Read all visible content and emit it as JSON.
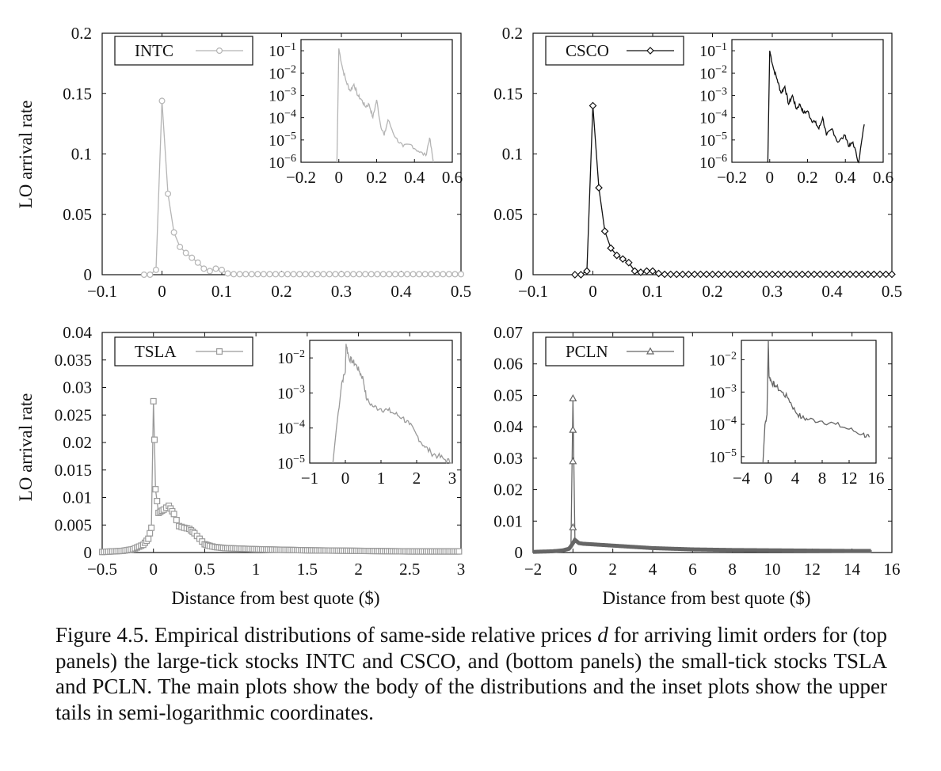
{
  "figure": {
    "xlabel": "Distance from best quote ($)",
    "ylabel": "LO arrival rate"
  },
  "caption": {
    "part1": "Figure 4.5. Empirical distributions of same-side relative prices ",
    "symbol": "d",
    "part2": " for arriving limit orders for (top panels) the large-tick stocks INTC and CSCO, and (bottom panels) the small-tick stocks TSLA and PCLN. The main plots show the body of the distributions and the inset plots show the upper tails in semi-logarithmic coordinates."
  },
  "colors": {
    "INTC": "#b5b5b5",
    "CSCO": "#111111",
    "TSLA": "#9a9a9a",
    "PCLN": "#666666",
    "axis": "#111111"
  },
  "chart_data": [
    {
      "id": "INTC",
      "type": "line",
      "legend": "INTC",
      "marker": "circle",
      "xlabel": "",
      "ylabel": "LO arrival rate",
      "xlim": [
        -0.1,
        0.5
      ],
      "ylim": [
        0,
        0.2
      ],
      "xticks": [
        -0.1,
        0,
        0.1,
        0.2,
        0.3,
        0.4,
        0.5
      ],
      "xtick_labels": [
        "−0.1",
        "0",
        "0.1",
        "0.2",
        "0.3",
        "0.4",
        "0.5"
      ],
      "yticks": [
        0,
        0.05,
        0.1,
        0.15,
        0.2
      ],
      "ytick_labels": [
        "0",
        "0.05",
        "0.1",
        "0.15",
        "0.2"
      ],
      "x": [
        -0.03,
        -0.02,
        -0.01,
        0,
        0.01,
        0.02,
        0.03,
        0.04,
        0.05,
        0.06,
        0.07,
        0.08,
        0.09,
        0.1,
        0.11
      ],
      "y": [
        0,
        0,
        0.004,
        0.144,
        0.067,
        0.035,
        0.023,
        0.018,
        0.014,
        0.01,
        0.005,
        0.003,
        0.005,
        0.004,
        0.001
      ],
      "tail_value": 0.0004,
      "inset": {
        "xlim": [
          -0.2,
          0.6
        ],
        "ylim_exp": [
          -6,
          -0.5
        ],
        "xticks": [
          -0.2,
          0,
          0.2,
          0.4,
          0.6
        ],
        "xtick_labels": [
          "−0.2",
          "0",
          "0.2",
          "0.4",
          "0.6"
        ],
        "yticks_exp": [
          -6,
          -5,
          -4,
          -3,
          -2,
          -1
        ],
        "ytick_labels": [
          "−6",
          "−5",
          "−4",
          "−3",
          "−2",
          "−1"
        ],
        "ytick_base": "10",
        "x": [
          -0.01,
          0,
          0.02,
          0.04,
          0.06,
          0.08,
          0.1,
          0.12,
          0.14,
          0.16,
          0.18,
          0.2,
          0.22,
          0.24,
          0.26,
          0.3,
          0.34,
          0.38,
          0.42,
          0.46,
          0.48,
          0.5
        ],
        "y_exp": [
          -6,
          -0.9,
          -1.8,
          -2.4,
          -2.8,
          -2.5,
          -3.0,
          -3.2,
          -3.5,
          -3.4,
          -4.0,
          -3.2,
          -4.3,
          -4.8,
          -4.1,
          -4.9,
          -5.3,
          -5.2,
          -5.5,
          -5.7,
          -4.9,
          -6
        ]
      }
    },
    {
      "id": "CSCO",
      "type": "line",
      "legend": "CSCO",
      "marker": "diamond",
      "xlabel": "",
      "ylabel": "",
      "xlim": [
        -0.1,
        0.5
      ],
      "ylim": [
        0,
        0.2
      ],
      "xticks": [
        -0.1,
        0,
        0.1,
        0.2,
        0.3,
        0.4,
        0.5
      ],
      "xtick_labels": [
        "−0.1",
        "0",
        "0.1",
        "0.2",
        "0.3",
        "0.4",
        "0.5"
      ],
      "yticks": [
        0,
        0.05,
        0.1,
        0.15,
        0.2
      ],
      "ytick_labels": [
        "0",
        "0.05",
        "0.1",
        "0.15",
        "0.2"
      ],
      "x": [
        -0.03,
        -0.02,
        -0.01,
        0,
        0.01,
        0.02,
        0.03,
        0.04,
        0.05,
        0.06,
        0.07,
        0.08,
        0.09,
        0.1,
        0.11
      ],
      "y": [
        0,
        0,
        0.003,
        0.14,
        0.072,
        0.036,
        0.022,
        0.016,
        0.013,
        0.01,
        0.003,
        0.002,
        0.003,
        0.003,
        0.001
      ],
      "tail_value": 0.0003,
      "inset": {
        "xlim": [
          -0.2,
          0.6
        ],
        "ylim_exp": [
          -6,
          -0.5
        ],
        "xticks": [
          -0.2,
          0,
          0.2,
          0.4,
          0.6
        ],
        "xtick_labels": [
          "−0.2",
          "0",
          "0.2",
          "0.4",
          "0.6"
        ],
        "yticks_exp": [
          -6,
          -5,
          -4,
          -3,
          -2,
          -1
        ],
        "ytick_labels": [
          "−6",
          "−5",
          "−4",
          "−3",
          "−2",
          "−1"
        ],
        "ytick_base": "10",
        "x": [
          -0.01,
          0,
          0.02,
          0.04,
          0.06,
          0.08,
          0.1,
          0.12,
          0.14,
          0.16,
          0.18,
          0.2,
          0.22,
          0.24,
          0.26,
          0.28,
          0.3,
          0.33,
          0.36,
          0.4,
          0.42,
          0.44,
          0.47,
          0.5
        ],
        "y_exp": [
          -6,
          -1.0,
          -1.8,
          -2.3,
          -2.9,
          -2.6,
          -3.4,
          -3.0,
          -3.6,
          -3.4,
          -3.8,
          -3.7,
          -4.1,
          -4.2,
          -4.5,
          -4.0,
          -4.8,
          -4.5,
          -5.1,
          -4.8,
          -5.3,
          -5.1,
          -6,
          -4.3
        ]
      }
    },
    {
      "id": "TSLA",
      "type": "line",
      "legend": "TSLA",
      "marker": "square",
      "xlabel": "Distance from best quote ($)",
      "ylabel": "LO arrival rate",
      "xlim": [
        -0.5,
        3
      ],
      "ylim": [
        0,
        0.04
      ],
      "xticks": [
        -0.5,
        0,
        0.5,
        1,
        1.5,
        2,
        2.5,
        3
      ],
      "xtick_labels": [
        "−0.5",
        "0",
        "0.5",
        "1",
        "1.5",
        "2",
        "2.5",
        "3"
      ],
      "yticks": [
        0,
        0.005,
        0.01,
        0.015,
        0.02,
        0.025,
        0.03,
        0.035,
        0.04
      ],
      "ytick_labels": [
        "0",
        "0.005",
        "0.01",
        "0.015",
        "0.02",
        "0.025",
        "0.03",
        "0.035",
        "0.04"
      ],
      "x": [
        -0.5,
        -0.3,
        -0.2,
        -0.1,
        -0.05,
        -0.02,
        0,
        0.01,
        0.02,
        0.05,
        0.1,
        0.15,
        0.2,
        0.25,
        0.3,
        0.35,
        0.4,
        0.45,
        0.5,
        0.55,
        0.6,
        0.7,
        1,
        1.5,
        2,
        2.5,
        3
      ],
      "y": [
        0.0001,
        0.0003,
        0.0006,
        0.0014,
        0.0025,
        0.0045,
        0.0275,
        0.0205,
        0.0115,
        0.0072,
        0.0078,
        0.0085,
        0.007,
        0.0048,
        0.0045,
        0.0043,
        0.0035,
        0.0025,
        0.0015,
        0.0012,
        0.001,
        0.0008,
        0.0006,
        0.0004,
        0.0003,
        0.0002,
        0.0002
      ],
      "inset": {
        "xlim": [
          -1,
          3
        ],
        "ylim_exp": [
          -5,
          -1.5
        ],
        "xticks": [
          -1,
          0,
          1,
          2,
          3
        ],
        "xtick_labels": [
          "−1",
          "0",
          "1",
          "2",
          "3"
        ],
        "yticks_exp": [
          -5,
          -4,
          -3,
          -2
        ],
        "ytick_labels": [
          "−5",
          "−4",
          "−3",
          "−2"
        ],
        "ytick_base": "10",
        "x": [
          -0.35,
          -0.25,
          -0.1,
          0,
          0.02,
          0.1,
          0.2,
          0.3,
          0.4,
          0.5,
          0.6,
          0.8,
          1,
          1.2,
          1.4,
          1.6,
          1.8,
          2,
          2.2,
          2.4,
          2.6,
          2.8,
          3
        ],
        "y_exp": [
          -5,
          -4.0,
          -2.7,
          -2.4,
          -1.6,
          -2.0,
          -2.1,
          -2.2,
          -2.4,
          -2.6,
          -3.2,
          -3.4,
          -3.45,
          -3.5,
          -3.6,
          -3.7,
          -3.9,
          -4.2,
          -4.5,
          -4.7,
          -4.8,
          -4.9,
          -5.0
        ]
      }
    },
    {
      "id": "PCLN",
      "type": "line",
      "legend": "PCLN",
      "marker": "triangle",
      "xlabel": "Distance from best quote ($)",
      "ylabel": "",
      "xlim": [
        -2,
        16
      ],
      "ylim": [
        0,
        0.07
      ],
      "xticks": [
        -2,
        0,
        2,
        4,
        6,
        8,
        10,
        12,
        14,
        16
      ],
      "xtick_labels": [
        "−2",
        "0",
        "2",
        "4",
        "6",
        "8",
        "10",
        "12",
        "14",
        "16"
      ],
      "yticks": [
        0,
        0.01,
        0.02,
        0.03,
        0.04,
        0.05,
        0.06,
        0.07
      ],
      "ytick_labels": [
        "0",
        "0.01",
        "0.02",
        "0.03",
        "0.04",
        "0.05",
        "0.06",
        "0.07"
      ],
      "x": [
        -2,
        -1,
        -0.5,
        -0.2,
        -0.1,
        0,
        0.1,
        0.3,
        0.5,
        1,
        2,
        3,
        4,
        6,
        8,
        10,
        12,
        14,
        15
      ],
      "y": [
        0.0002,
        0.0004,
        0.0007,
        0.0012,
        0.002,
        0.049,
        0.004,
        0.003,
        0.0028,
        0.0026,
        0.0022,
        0.0018,
        0.0014,
        0.001,
        0.0008,
        0.0007,
        0.0006,
        0.0005,
        0.0005
      ],
      "spike_markers_y": [
        0.008,
        0.029,
        0.039,
        0.049
      ],
      "inset": {
        "xlim": [
          -4,
          16
        ],
        "ylim_exp": [
          -5.2,
          -1.4
        ],
        "xticks": [
          -4,
          0,
          4,
          8,
          12,
          16
        ],
        "xtick_labels": [
          "−4",
          "0",
          "4",
          "8",
          "12",
          "16"
        ],
        "yticks_exp": [
          -5,
          -4,
          -3,
          -2
        ],
        "ytick_labels": [
          "−5",
          "−4",
          "−3",
          "−2"
        ],
        "ytick_base": "10",
        "x": [
          -0.8,
          -0.5,
          -0.2,
          0,
          0.1,
          0.5,
          1,
          2,
          3,
          4,
          5,
          6,
          8,
          10,
          12,
          14,
          15
        ],
        "y_exp": [
          -5.2,
          -4.0,
          -3.7,
          -1.4,
          -2.5,
          -2.7,
          -2.8,
          -3.0,
          -3.2,
          -3.6,
          -3.8,
          -3.85,
          -3.9,
          -4.0,
          -4.15,
          -4.3,
          -4.4
        ]
      }
    }
  ]
}
